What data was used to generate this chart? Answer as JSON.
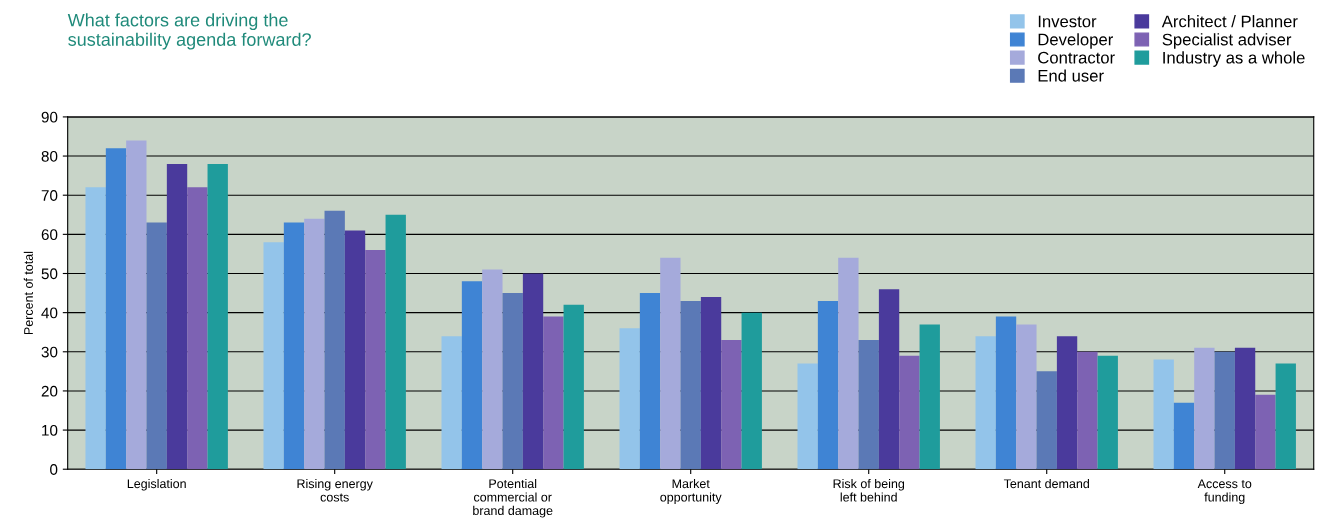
{
  "chart_data": {
    "type": "bar",
    "title": "What factors are driving the\nsustainability agenda forward?",
    "ylabel": "Percent of total",
    "categories": [
      "Legislation",
      "Rising energy\ncosts",
      "Potential\ncommercial or\nbrand damage",
      "Market\nopportunity",
      "Risk of being\nleft behind",
      "Tenant demand",
      "Access to\nfunding"
    ],
    "series": [
      {
        "name": "Investor",
        "color": "#93c4ea",
        "values": [
          72,
          58,
          34,
          36,
          27,
          34,
          28
        ]
      },
      {
        "name": "Developer",
        "color": "#3f84d4",
        "values": [
          82,
          63,
          48,
          45,
          43,
          39,
          17
        ]
      },
      {
        "name": "Contractor",
        "color": "#a5aadb",
        "values": [
          84,
          64,
          51,
          54,
          54,
          37,
          31
        ]
      },
      {
        "name": "End user",
        "color": "#5b79b6",
        "values": [
          63,
          66,
          45,
          43,
          33,
          25,
          30
        ]
      },
      {
        "name": "Architect / Planner",
        "color": "#4a3a9c",
        "values": [
          78,
          61,
          50,
          44,
          46,
          34,
          31
        ]
      },
      {
        "name": "Specialist adviser",
        "color": "#7d62b3",
        "values": [
          72,
          56,
          39,
          33,
          29,
          30,
          19
        ]
      },
      {
        "name": "Industry as a whole",
        "color": "#1f9c9c",
        "values": [
          78,
          65,
          42,
          40,
          37,
          29,
          27
        ]
      }
    ],
    "ylim": [
      0,
      90
    ],
    "yticks": [
      0,
      10,
      20,
      30,
      40,
      50,
      60,
      70,
      80,
      90
    ],
    "grid": "y",
    "legend": "top right"
  }
}
